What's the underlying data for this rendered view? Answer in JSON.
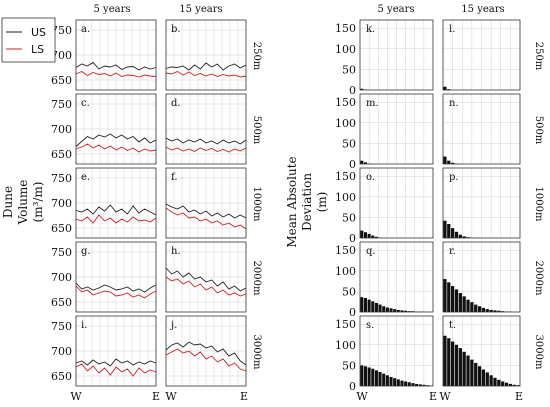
{
  "colors": {
    "us": "#222222",
    "ls": "#d02020",
    "bar": "#111111",
    "grid": "#cfcfcf",
    "frame": "#333333"
  },
  "chart_data": [
    {
      "type": "line",
      "title": "",
      "ylabel_lines": [
        "Dune",
        "Volume",
        "(m³/m)"
      ],
      "col_titles": [
        "5 years",
        "15 years"
      ],
      "row_titles": [
        "250m",
        "500m",
        "1000m",
        "2000m",
        "3000m"
      ],
      "xticks": [
        "W",
        "E"
      ],
      "ylim": [
        630,
        770
      ],
      "yticks": [
        650,
        700,
        750
      ],
      "grid": true,
      "legend": {
        "position": "top-left",
        "entries": [
          "US",
          "LS"
        ]
      },
      "panels": [
        {
          "label": "a.",
          "row": 0,
          "col": 0,
          "series": [
            {
              "name": "US",
              "values": [
                675,
                682,
                678,
                685,
                672,
                678,
                676,
                680,
                671,
                676,
                677,
                670,
                676,
                672,
                675
              ]
            },
            {
              "name": "LS",
              "values": [
                662,
                667,
                659,
                665,
                661,
                663,
                658,
                664,
                657,
                660,
                659,
                656,
                660,
                658,
                657
              ]
            }
          ]
        },
        {
          "label": "b.",
          "row": 0,
          "col": 1,
          "series": [
            {
              "name": "US",
              "values": [
                673,
                676,
                675,
                678,
                670,
                680,
                672,
                684,
                676,
                682,
                670,
                678,
                682,
                674,
                680
              ]
            },
            {
              "name": "LS",
              "values": [
                664,
                662,
                667,
                660,
                666,
                659,
                663,
                658,
                662,
                657,
                661,
                658,
                660,
                656,
                658
              ]
            }
          ]
        },
        {
          "label": "c.",
          "row": 1,
          "col": 0,
          "series": [
            {
              "name": "US",
              "values": [
                665,
                675,
                685,
                680,
                688,
                684,
                690,
                682,
                688,
                680,
                685,
                674,
                682,
                672,
                678
              ]
            },
            {
              "name": "LS",
              "values": [
                660,
                664,
                670,
                662,
                668,
                660,
                666,
                658,
                664,
                657,
                662,
                654,
                660,
                656,
                658
              ]
            }
          ]
        },
        {
          "label": "d.",
          "row": 1,
          "col": 1,
          "series": [
            {
              "name": "US",
              "values": [
                682,
                676,
                680,
                672,
                678,
                674,
                680,
                672,
                676,
                670,
                678,
                672,
                676,
                670,
                678
              ]
            },
            {
              "name": "LS",
              "values": [
                664,
                658,
                662,
                656,
                660,
                655,
                662,
                657,
                661,
                655,
                659,
                654,
                660,
                656,
                662
              ]
            }
          ]
        },
        {
          "label": "e.",
          "row": 2,
          "col": 0,
          "series": [
            {
              "name": "US",
              "values": [
                685,
                682,
                688,
                678,
                692,
                684,
                696,
                682,
                688,
                678,
                694,
                680,
                688,
                682,
                676
              ]
            },
            {
              "name": "LS",
              "values": [
                668,
                664,
                672,
                660,
                676,
                664,
                670,
                660,
                668,
                662,
                672,
                664,
                666,
                662,
                670
              ]
            }
          ]
        },
        {
          "label": "f.",
          "row": 2,
          "col": 1,
          "series": [
            {
              "name": "US",
              "values": [
                698,
                692,
                688,
                694,
                682,
                686,
                678,
                684,
                674,
                680,
                672,
                678,
                670,
                676,
                670
              ]
            },
            {
              "name": "LS",
              "values": [
                690,
                682,
                676,
                680,
                670,
                672,
                664,
                668,
                660,
                664,
                656,
                660,
                652,
                656,
                648
              ]
            }
          ]
        },
        {
          "label": "g.",
          "row": 3,
          "col": 0,
          "series": [
            {
              "name": "US",
              "values": [
                688,
                676,
                680,
                674,
                678,
                684,
                680,
                674,
                676,
                680,
                672,
                676,
                670,
                678,
                684
              ]
            },
            {
              "name": "LS",
              "values": [
                682,
                670,
                674,
                664,
                668,
                672,
                670,
                662,
                664,
                668,
                660,
                664,
                658,
                666,
                672
              ]
            }
          ]
        },
        {
          "label": "h.",
          "row": 3,
          "col": 1,
          "series": [
            {
              "name": "US",
              "values": [
                718,
                706,
                712,
                700,
                708,
                696,
                700,
                690,
                694,
                682,
                690,
                676,
                682,
                672,
                678
              ]
            },
            {
              "name": "LS",
              "values": [
                700,
                692,
                696,
                686,
                692,
                680,
                686,
                674,
                680,
                668,
                674,
                664,
                668,
                662,
                666
              ]
            }
          ]
        },
        {
          "label": "i.",
          "row": 4,
          "col": 0,
          "series": [
            {
              "name": "US",
              "values": [
                676,
                680,
                672,
                682,
                674,
                678,
                670,
                684,
                676,
                680,
                672,
                678,
                674,
                680,
                676
              ]
            },
            {
              "name": "LS",
              "values": [
                668,
                674,
                660,
                670,
                656,
                666,
                652,
                668,
                658,
                664,
                650,
                666,
                656,
                662,
                658
              ]
            }
          ]
        },
        {
          "label": "j.",
          "row": 4,
          "col": 1,
          "series": [
            {
              "name": "US",
              "values": [
                702,
                712,
                716,
                708,
                718,
                712,
                714,
                706,
                710,
                698,
                704,
                690,
                696,
                680,
                672
              ]
            },
            {
              "name": "LS",
              "values": [
                692,
                698,
                704,
                696,
                700,
                690,
                698,
                684,
                690,
                678,
                684,
                670,
                676,
                664,
                660
              ]
            }
          ]
        }
      ]
    },
    {
      "type": "bar",
      "title": "",
      "ylabel_lines": [
        "Mean Absolute",
        "Deviation",
        "(m)"
      ],
      "col_titles": [
        "5 years",
        "15 years"
      ],
      "row_titles": [
        "250m",
        "500m",
        "1000m",
        "2000m",
        "3000m"
      ],
      "xticks": [
        "W",
        "E"
      ],
      "ylim": [
        0,
        170
      ],
      "yticks": [
        0,
        50,
        100,
        150
      ],
      "grid": true,
      "panels": [
        {
          "label": "k.",
          "row": 0,
          "col": 0,
          "values": [
            3,
            1,
            0,
            0,
            0,
            0,
            0,
            0,
            0,
            0,
            0,
            0,
            0,
            0,
            0,
            0,
            0,
            0,
            0,
            0
          ]
        },
        {
          "label": "l.",
          "row": 0,
          "col": 1,
          "values": [
            8,
            2,
            0,
            0,
            0,
            0,
            0,
            0,
            0,
            0,
            0,
            0,
            0,
            0,
            0,
            0,
            0,
            0,
            0,
            0
          ]
        },
        {
          "label": "m.",
          "row": 1,
          "col": 0,
          "values": [
            8,
            4,
            1,
            0,
            0,
            0,
            0,
            0,
            0,
            0,
            0,
            0,
            0,
            0,
            0,
            0,
            0,
            0,
            0,
            0
          ]
        },
        {
          "label": "n.",
          "row": 1,
          "col": 1,
          "values": [
            18,
            8,
            3,
            1,
            0,
            0,
            0,
            0,
            0,
            0,
            0,
            0,
            0,
            0,
            0,
            0,
            0,
            0,
            0,
            0
          ]
        },
        {
          "label": "o.",
          "row": 2,
          "col": 0,
          "values": [
            18,
            14,
            10,
            6,
            3,
            1,
            0,
            0,
            0,
            0,
            0,
            0,
            0,
            0,
            0,
            0,
            0,
            0,
            0,
            0
          ]
        },
        {
          "label": "p.",
          "row": 2,
          "col": 1,
          "values": [
            42,
            34,
            24,
            15,
            8,
            4,
            2,
            1,
            0,
            0,
            0,
            0,
            0,
            0,
            0,
            0,
            0,
            0,
            0,
            0
          ]
        },
        {
          "label": "q.",
          "row": 3,
          "col": 0,
          "values": [
            36,
            34,
            30,
            26,
            22,
            18,
            14,
            11,
            9,
            7,
            5,
            4,
            3,
            2,
            2,
            1,
            1,
            1,
            0,
            0
          ]
        },
        {
          "label": "r.",
          "row": 3,
          "col": 1,
          "values": [
            80,
            72,
            63,
            55,
            46,
            38,
            30,
            24,
            18,
            14,
            10,
            7,
            5,
            4,
            3,
            2,
            1,
            1,
            0,
            0
          ]
        },
        {
          "label": "s.",
          "row": 4,
          "col": 0,
          "values": [
            50,
            48,
            45,
            42,
            38,
            34,
            30,
            26,
            22,
            19,
            16,
            13,
            11,
            9,
            7,
            5,
            4,
            3,
            2,
            1
          ]
        },
        {
          "label": "t.",
          "row": 4,
          "col": 1,
          "values": [
            122,
            116,
            108,
            100,
            92,
            83,
            74,
            64,
            56,
            48,
            40,
            33,
            26,
            20,
            15,
            11,
            8,
            5,
            3,
            2
          ]
        }
      ]
    }
  ]
}
